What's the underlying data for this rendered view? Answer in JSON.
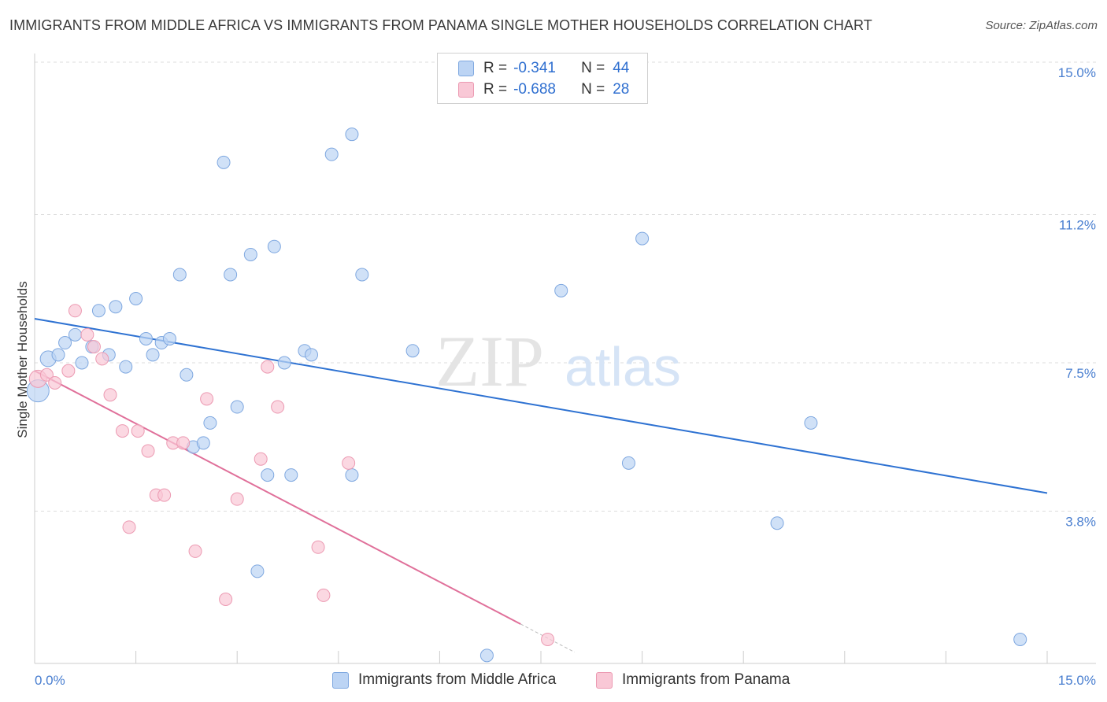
{
  "title": "IMMIGRANTS FROM MIDDLE AFRICA VS IMMIGRANTS FROM PANAMA SINGLE MOTHER HOUSEHOLDS CORRELATION CHART",
  "source": "Source: ZipAtlas.com",
  "watermark": {
    "zip": "ZIP",
    "atlas": "atlas"
  },
  "colors": {
    "blue_fill": "#bcd4f4",
    "blue_stroke": "#7fa8e0",
    "blue_line": "#2e72d2",
    "pink_fill": "#f9c8d6",
    "pink_stroke": "#ec9ab2",
    "pink_line": "#e0709a",
    "grid": "#dddddd",
    "tick_text": "#4a7fd0"
  },
  "legend": {
    "rows": [
      {
        "r_label": "R =",
        "r_value": "-0.341",
        "n_label": "N =",
        "n_value": "44"
      },
      {
        "r_label": "R =",
        "r_value": "-0.688",
        "n_label": "N =",
        "n_value": "28"
      }
    ]
  },
  "bottom_legend": {
    "blue": "Immigrants from Middle Africa",
    "pink": "Immigrants from Panama"
  },
  "chart_data": {
    "type": "scatter",
    "title": "IMMIGRANTS FROM MIDDLE AFRICA VS IMMIGRANTS FROM PANAMA SINGLE MOTHER HOUSEHOLDS CORRELATION CHART",
    "xlabel": "",
    "ylabel": "Single Mother Households",
    "xlim": [
      0,
      15
    ],
    "ylim": [
      0,
      15.0
    ],
    "x_tick_labels": [
      "0.0%",
      "15.0%"
    ],
    "y_ticks": [
      3.8,
      7.5,
      11.2,
      15.0
    ],
    "y_tick_labels": [
      "3.8%",
      "7.5%",
      "11.2%",
      "15.0%"
    ],
    "grid": true,
    "legend_position": "top-center",
    "series": [
      {
        "name": "Immigrants from Middle Africa",
        "color": "#bcd4f4",
        "points": [
          [
            0.05,
            6.8
          ],
          [
            0.2,
            7.6
          ],
          [
            0.35,
            7.7
          ],
          [
            0.45,
            8.0
          ],
          [
            0.6,
            8.2
          ],
          [
            0.7,
            7.5
          ],
          [
            0.85,
            7.9
          ],
          [
            0.95,
            8.8
          ],
          [
            1.1,
            7.7
          ],
          [
            1.2,
            8.9
          ],
          [
            1.35,
            7.4
          ],
          [
            1.5,
            9.1
          ],
          [
            1.65,
            8.1
          ],
          [
            1.75,
            7.7
          ],
          [
            1.88,
            8.0
          ],
          [
            2.0,
            8.1
          ],
          [
            2.15,
            9.7
          ],
          [
            2.25,
            7.2
          ],
          [
            2.35,
            5.4
          ],
          [
            2.5,
            5.5
          ],
          [
            2.6,
            6.0
          ],
          [
            2.8,
            12.5
          ],
          [
            2.9,
            9.7
          ],
          [
            3.0,
            6.4
          ],
          [
            3.2,
            10.2
          ],
          [
            3.3,
            2.3
          ],
          [
            3.45,
            4.7
          ],
          [
            3.55,
            10.4
          ],
          [
            3.7,
            7.5
          ],
          [
            3.8,
            4.7
          ],
          [
            4.0,
            7.8
          ],
          [
            4.1,
            7.7
          ],
          [
            4.4,
            12.7
          ],
          [
            4.7,
            4.7
          ],
          [
            4.7,
            13.2
          ],
          [
            4.85,
            9.7
          ],
          [
            5.6,
            7.8
          ],
          [
            6.7,
            0.2
          ],
          [
            7.8,
            9.3
          ],
          [
            8.8,
            5.0
          ],
          [
            9.0,
            10.6
          ],
          [
            11.0,
            3.5
          ],
          [
            11.5,
            6.0
          ],
          [
            14.6,
            0.6
          ]
        ]
      },
      {
        "name": "Immigrants from Panama",
        "color": "#f9c8d6",
        "points": [
          [
            0.05,
            7.1
          ],
          [
            0.18,
            7.2
          ],
          [
            0.3,
            7.0
          ],
          [
            0.5,
            7.3
          ],
          [
            0.6,
            8.8
          ],
          [
            0.78,
            8.2
          ],
          [
            0.88,
            7.9
          ],
          [
            1.0,
            7.6
          ],
          [
            1.12,
            6.7
          ],
          [
            1.3,
            5.8
          ],
          [
            1.4,
            3.4
          ],
          [
            1.53,
            5.8
          ],
          [
            1.68,
            5.3
          ],
          [
            1.8,
            4.2
          ],
          [
            1.92,
            4.2
          ],
          [
            2.05,
            5.5
          ],
          [
            2.2,
            5.5
          ],
          [
            2.38,
            2.8
          ],
          [
            2.55,
            6.6
          ],
          [
            2.83,
            1.6
          ],
          [
            3.0,
            4.1
          ],
          [
            3.35,
            5.1
          ],
          [
            3.45,
            7.4
          ],
          [
            3.6,
            6.4
          ],
          [
            4.2,
            2.9
          ],
          [
            4.28,
            1.7
          ],
          [
            4.65,
            5.0
          ],
          [
            7.6,
            0.6
          ]
        ]
      }
    ],
    "trend_lines": [
      {
        "series": "Immigrants from Middle Africa",
        "from": [
          0,
          8.6
        ],
        "to": [
          15,
          4.25
        ]
      },
      {
        "series": "Immigrants from Panama",
        "from": [
          0,
          7.3
        ],
        "to": [
          8.0,
          0.28
        ]
      }
    ]
  }
}
